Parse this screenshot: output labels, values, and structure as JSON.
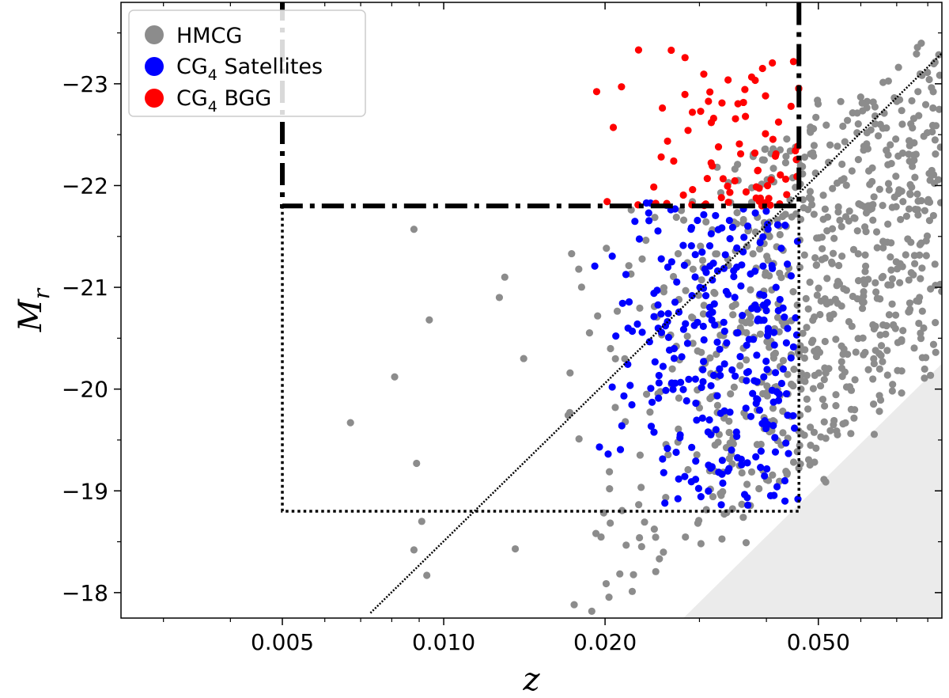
{
  "chart_data": {
    "type": "scatter",
    "title": "",
    "xlabel": "z",
    "ylabel": "M",
    "ylabel_sub": "r",
    "xscale": "log",
    "xlim": [
      0.0025,
      0.085
    ],
    "ylim": [
      -17.75,
      -23.8
    ],
    "xticks": [
      {
        "value": 0.005,
        "label": "0.005"
      },
      {
        "value": 0.01,
        "label": "0.010"
      },
      {
        "value": 0.02,
        "label": "0.020"
      },
      {
        "value": 0.05,
        "label": "0.050"
      }
    ],
    "yticks": [
      {
        "value": -18,
        "label": "−18"
      },
      {
        "value": -19,
        "label": "−19"
      },
      {
        "value": -20,
        "label": "−20"
      },
      {
        "value": -21,
        "label": "−21"
      },
      {
        "value": -22,
        "label": "−22"
      },
      {
        "value": -23,
        "label": "−23"
      }
    ],
    "legend": {
      "placement": "top-left",
      "entries": [
        {
          "label": "HMCG",
          "color": "#8c8c8c"
        },
        {
          "label": "CG",
          "sub": "4",
          "suffix": " Satellites",
          "color": "#0000ff"
        },
        {
          "label": "CG",
          "sub": "4",
          "suffix": " BGG",
          "color": "#ff0000"
        }
      ]
    },
    "colors": {
      "hmcg": "#8c8c8c",
      "satellites": "#0000ff",
      "bgg": "#ff0000",
      "shade": "#ebebeb"
    },
    "reference_lines": {
      "bgg_box": {
        "style": "dashdot",
        "z_min": 0.005,
        "z_max": 0.046,
        "M_limit": -21.8
      },
      "sat_box": {
        "style": "dotted",
        "z_min": 0.005,
        "z_max": 0.046,
        "M_bright": -21.8,
        "M_faint": -18.8
      },
      "completeness_line": {
        "style": "dotted",
        "z_start": 0.0073,
        "M_start": -17.8,
        "z_end": 0.085,
        "M_end": -23.3
      },
      "shaded_region": {
        "z_at_bottom": 0.028,
        "M_at_right": -20.25
      }
    },
    "series": [
      {
        "name": "HMCG",
        "seed": 7,
        "count": 780,
        "sampling": "random, faint luminosity limit brightening with z, points sparse below z=0.02",
        "fixed_points": [
          {
            "z": 0.0088,
            "M": -21.57
          },
          {
            "z": 0.013,
            "M": -21.1
          },
          {
            "z": 0.0127,
            "M": -20.9
          },
          {
            "z": 0.0094,
            "M": -20.68
          },
          {
            "z": 0.0141,
            "M": -20.3
          },
          {
            "z": 0.0081,
            "M": -20.12
          },
          {
            "z": 0.0067,
            "M": -19.67
          },
          {
            "z": 0.0089,
            "M": -19.27
          },
          {
            "z": 0.0091,
            "M": -18.7
          },
          {
            "z": 0.0088,
            "M": -18.42
          },
          {
            "z": 0.0136,
            "M": -18.43
          },
          {
            "z": 0.0093,
            "M": -18.17
          }
        ]
      },
      {
        "name": "CG4 Satellites",
        "seed": 21,
        "count": 290,
        "range": {
          "z_min": 0.019,
          "z_max": 0.046,
          "M_bright": -21.85,
          "M_faint": -18.85
        }
      },
      {
        "name": "CG4 BGG",
        "seed": 99,
        "count": 85,
        "range": {
          "z_min": 0.019,
          "z_max": 0.046,
          "M_bright": -23.35,
          "M_faint": -21.8
        }
      }
    ]
  }
}
